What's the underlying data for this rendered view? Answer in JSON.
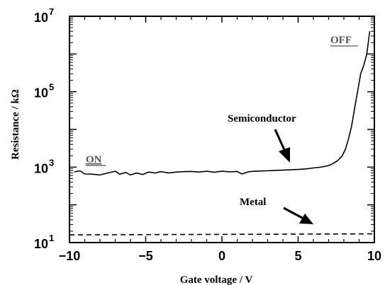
{
  "chart_data": {
    "type": "line",
    "xlabel": "Gate voltage / V",
    "ylabel": "Resistance / kΩ",
    "xlim": [
      -10,
      10
    ],
    "ylim": [
      10,
      10000000
    ],
    "yscale": "log",
    "grid": false,
    "x_ticks": [
      -10,
      -5,
      0,
      5,
      10
    ],
    "x_tick_labels": [
      "−10",
      "−5",
      "0",
      "5",
      "10"
    ],
    "y_ticks": [
      {
        "value": 10,
        "base": "10",
        "exp": "1"
      },
      {
        "value": 1000,
        "base": "10",
        "exp": "3"
      },
      {
        "value": 100000,
        "base": "10",
        "exp": "5"
      },
      {
        "value": 10000000,
        "base": "10",
        "exp": "7"
      }
    ],
    "series": [
      {
        "name": "Semiconductor",
        "style": "solid",
        "x": [
          -9.7,
          -9.3,
          -9.0,
          -8.5,
          -8.0,
          -7.5,
          -7.0,
          -6.7,
          -6.3,
          -6.0,
          -5.6,
          -5.2,
          -4.8,
          -4.4,
          -4.0,
          -3.5,
          -3.0,
          -2.5,
          -2.0,
          -1.5,
          -1.0,
          -0.5,
          0.0,
          0.5,
          1.0,
          1.3,
          1.8,
          2.2,
          3.0,
          3.5,
          4.0,
          4.5,
          5.0,
          5.5,
          6.0,
          6.5,
          7.0,
          7.3,
          7.6,
          7.9,
          8.1,
          8.3,
          8.5,
          8.7,
          8.9,
          9.1,
          9.3,
          9.5,
          9.7
        ],
        "y": [
          750,
          800,
          660,
          650,
          620,
          700,
          780,
          650,
          720,
          620,
          700,
          640,
          740,
          700,
          760,
          700,
          740,
          760,
          770,
          740,
          780,
          730,
          780,
          750,
          770,
          660,
          760,
          780,
          800,
          820,
          830,
          850,
          870,
          900,
          950,
          1000,
          1100,
          1250,
          1500,
          2000,
          3000,
          5500,
          12000,
          35000,
          100000,
          300000,
          500000,
          1000000,
          4000000
        ]
      },
      {
        "name": "Metal",
        "style": "dashed",
        "x": [
          -10,
          10
        ],
        "y": [
          16,
          17
        ]
      }
    ],
    "annotations": {
      "on": "ON",
      "off": "OFF",
      "semiconductor": "Semiconductor",
      "metal": "Metal"
    }
  }
}
